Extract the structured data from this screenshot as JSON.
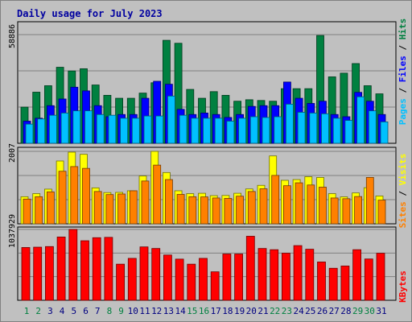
{
  "colors": {
    "background": "#c0c0c0",
    "title": "#0000a0",
    "hits": "#008040",
    "files": "#0000ff",
    "pages": "#00c0ff",
    "visits": "#ffff00",
    "sites": "#ff8000",
    "kbytes": "#ff0000",
    "weekend_day_label": "#008040",
    "day_label": "#000080"
  },
  "chart_data": {
    "type": "bar",
    "title": "Daily usage for July 2023",
    "categories": [
      "1",
      "2",
      "3",
      "4",
      "5",
      "6",
      "7",
      "8",
      "9",
      "10",
      "11",
      "12",
      "13",
      "14",
      "15",
      "16",
      "17",
      "18",
      "19",
      "20",
      "21",
      "22",
      "23",
      "24",
      "25",
      "26",
      "27",
      "28",
      "29",
      "30",
      "31"
    ],
    "weekend_days": [
      "1",
      "2",
      "8",
      "9",
      "15",
      "16",
      "22",
      "23",
      "29",
      "30"
    ],
    "panels": [
      {
        "max_label": "58886",
        "ylim": [
          0,
          58886
        ],
        "series": [
          {
            "name": "Hits",
            "values": [
              19600,
              27700,
              31200,
              41200,
              39200,
              40400,
              31600,
              26000,
              24400,
              24400,
              27200,
              32800,
              55800,
              54200,
              29200,
              24400,
              28000,
              26000,
              22800,
              23600,
              23200,
              22800,
              29600,
              29600,
              29600,
              58400,
              36000,
              38000,
              43200,
              31200,
              26800
            ]
          },
          {
            "name": "Files",
            "values": [
              12000,
              13600,
              20400,
              24000,
              30400,
              28400,
              20400,
              14400,
              15600,
              15600,
              24400,
              33600,
              32000,
              18400,
              15600,
              16400,
              15600,
              14000,
              15600,
              20000,
              20400,
              20400,
              33200,
              24400,
              21600,
              22800,
              15600,
              14400,
              27600,
              22800,
              15600
            ]
          },
          {
            "name": "Pages",
            "values": [
              10400,
              13200,
              15200,
              16400,
              17600,
              17600,
              15600,
              15200,
              13600,
              13600,
              14800,
              14800,
              25600,
              15200,
              13600,
              13600,
              13600,
              12000,
              13600,
              14400,
              14000,
              14400,
              21200,
              16800,
              16400,
              16000,
              13600,
              12400,
              25200,
              17600,
              11600
            ]
          }
        ]
      },
      {
        "max_label": "2007",
        "ylim": [
          0,
          2007
        ],
        "series": [
          {
            "name": "Visits",
            "values": [
              750,
              835,
              960,
              1740,
              1985,
              1925,
              995,
              865,
              870,
              915,
              1325,
              2007,
              1420,
              915,
              835,
              845,
              780,
              785,
              845,
              965,
              1065,
              1880,
              1205,
              1225,
              1305,
              1283,
              835,
              745,
              855,
              1000,
              770
            ]
          },
          {
            "name": "Sites",
            "values": [
              685,
              750,
              885,
              1455,
              1585,
              1535,
              895,
              810,
              825,
              915,
              1185,
              1625,
              1225,
              815,
              750,
              745,
              715,
              705,
              765,
              895,
              970,
              1340,
              1055,
              1135,
              1075,
              1015,
              715,
              695,
              755,
              1285,
              655
            ]
          }
        ]
      },
      {
        "max_label": "1037929",
        "ylim": [
          0,
          1037929
        ],
        "series": [
          {
            "name": "KBytes",
            "values": [
              773000,
              778000,
              787000,
              927000,
              1037929,
              872000,
              917000,
              922000,
              529000,
              614000,
              782000,
              759000,
              663000,
              603000,
              529000,
              614000,
              417000,
              678000,
              678000,
              938000,
              759000,
              741000,
              690000,
              801000,
              748000,
              561000,
              469000,
              502000,
              741000,
              605000,
              689000
            ]
          }
        ]
      }
    ],
    "legend_top": {
      "pages": "Pages",
      "files": "Files",
      "hits": "Hits",
      "sep": " / "
    },
    "legend_mid": {
      "sites": "Sites",
      "visits": "Visits",
      "sep": " / "
    },
    "legend_bottom": {
      "kbytes": "KBytes"
    }
  }
}
